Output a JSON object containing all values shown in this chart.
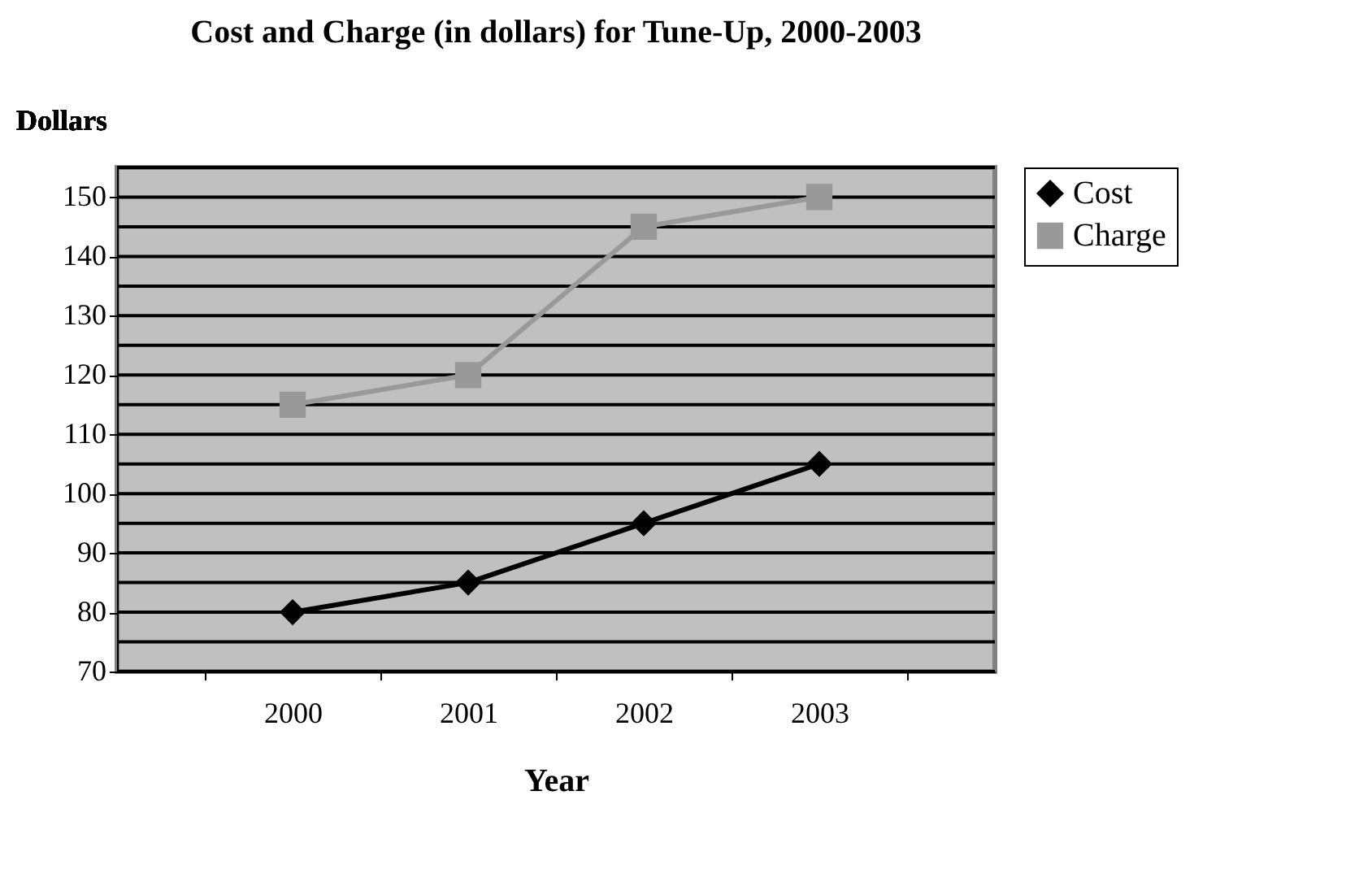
{
  "chart_data": {
    "type": "line",
    "title": "Cost and Charge (in dollars) for Tune-Up, 2000-2003",
    "xlabel": "Year",
    "ylabel": "Dollars",
    "categories": [
      "2000",
      "2001",
      "2002",
      "2003"
    ],
    "series": [
      {
        "name": "Cost",
        "color": "#000000",
        "marker": "diamond",
        "values": [
          80,
          85,
          95,
          105
        ]
      },
      {
        "name": "Charge",
        "color": "#999999",
        "marker": "square",
        "values": [
          115,
          120,
          145,
          150
        ]
      }
    ],
    "ylim": [
      70,
      155
    ],
    "yticks": [
      70,
      {
        "value": 75,
        "label": null
      },
      80,
      {
        "value": 85,
        "label": null
      },
      90,
      {
        "value": 95,
        "label": null
      },
      100,
      {
        "value": 105,
        "label": null
      },
      110,
      {
        "value": 115,
        "label": null
      },
      120,
      {
        "value": 125,
        "label": null
      },
      130,
      {
        "value": 135,
        "label": null
      },
      140,
      {
        "value": 145,
        "label": null
      },
      150,
      {
        "value": 155,
        "label": null
      }
    ],
    "grid": "y",
    "legend": "right"
  }
}
